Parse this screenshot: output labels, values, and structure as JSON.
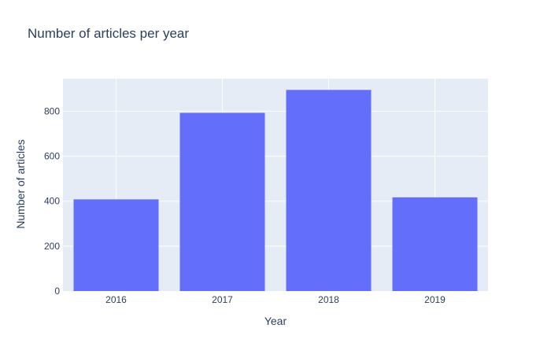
{
  "chart_data": {
    "type": "bar",
    "title": "Number of articles per year",
    "xlabel": "Year",
    "ylabel": "Number of articles",
    "categories": [
      "2016",
      "2017",
      "2018",
      "2019"
    ],
    "values": [
      408,
      793,
      895,
      417
    ],
    "ylim": [
      0,
      945
    ],
    "yticks": [
      0,
      200,
      400,
      600,
      800
    ],
    "grid": true,
    "bar_color": "#636efa",
    "plot_background": "#e5ecf6",
    "grid_color": "#ffffff",
    "text_color": "#2a3f5f"
  }
}
